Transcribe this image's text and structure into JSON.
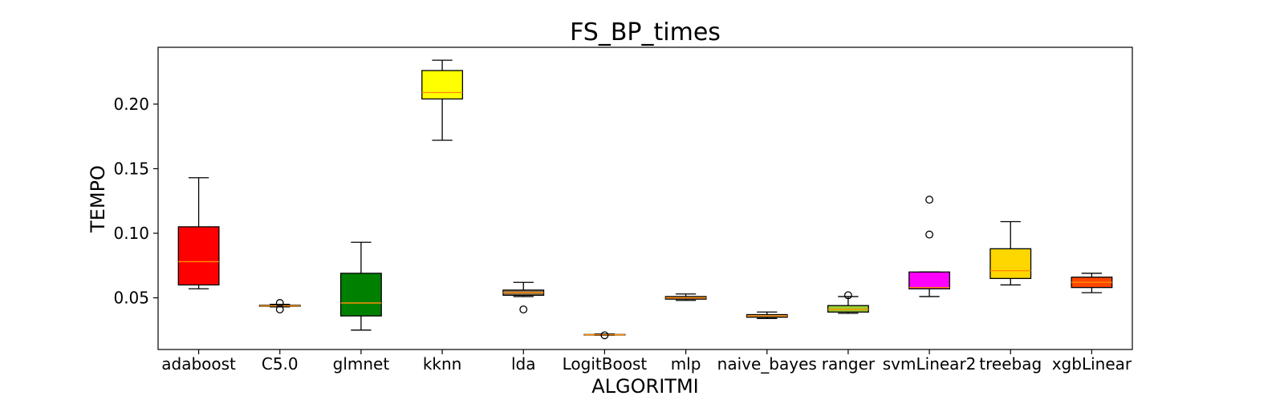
{
  "chart_data": {
    "type": "box",
    "title": "FS_BP_times",
    "xlabel": "ALGORITMI",
    "ylabel": "TEMPO",
    "ylim": [
      0.01,
      0.244
    ],
    "yticks": [
      0.05,
      0.1,
      0.15,
      0.2
    ],
    "ytick_labels": [
      "0.05",
      "0.10",
      "0.15",
      "0.20"
    ],
    "grid": false,
    "median_color": "#ff8c00",
    "categories": [
      "adaboost",
      "C5.0",
      "glmnet",
      "kknn",
      "lda",
      "LogitBoost",
      "mlp",
      "naive_bayes",
      "ranger",
      "svmLinear2",
      "treebag",
      "xgbLinear"
    ],
    "boxes": [
      {
        "name": "adaboost",
        "color": "#ff0000",
        "whislo": 0.057,
        "q1": 0.06,
        "median": 0.078,
        "q3": 0.105,
        "whishi": 0.143,
        "fliers": []
      },
      {
        "name": "C5.0",
        "color": "#808080",
        "whislo": 0.043,
        "q1": 0.0435,
        "median": 0.0438,
        "q3": 0.0442,
        "whishi": 0.045,
        "fliers": [
          0.046,
          0.041
        ]
      },
      {
        "name": "glmnet",
        "color": "#008000",
        "whislo": 0.025,
        "q1": 0.036,
        "median": 0.046,
        "q3": 0.069,
        "whishi": 0.093,
        "fliers": []
      },
      {
        "name": "kknn",
        "color": "#ffff00",
        "whislo": 0.172,
        "q1": 0.204,
        "median": 0.209,
        "q3": 0.226,
        "whishi": 0.234,
        "fliers": []
      },
      {
        "name": "lda",
        "color": "#8b7355",
        "whislo": 0.051,
        "q1": 0.052,
        "median": 0.054,
        "q3": 0.056,
        "whishi": 0.062,
        "fliers": [
          0.041
        ]
      },
      {
        "name": "LogitBoost",
        "color": "#8a2be2",
        "whislo": 0.021,
        "q1": 0.0212,
        "median": 0.0214,
        "q3": 0.0216,
        "whishi": 0.022,
        "fliers": [
          0.021
        ]
      },
      {
        "name": "mlp",
        "color": "#f4a460",
        "whislo": 0.048,
        "q1": 0.049,
        "median": 0.05,
        "q3": 0.051,
        "whishi": 0.053,
        "fliers": []
      },
      {
        "name": "naive_bayes",
        "color": "#deb887",
        "whislo": 0.034,
        "q1": 0.035,
        "median": 0.036,
        "q3": 0.037,
        "whishi": 0.039,
        "fliers": []
      },
      {
        "name": "ranger",
        "color": "#9acd32",
        "whislo": 0.038,
        "q1": 0.039,
        "median": 0.041,
        "q3": 0.044,
        "whishi": 0.051,
        "fliers": [
          0.052
        ]
      },
      {
        "name": "svmLinear2",
        "color": "#ff00ff",
        "whislo": 0.051,
        "q1": 0.057,
        "median": 0.058,
        "q3": 0.07,
        "whishi": 0.07,
        "fliers": [
          0.126,
          0.099
        ]
      },
      {
        "name": "treebag",
        "color": "#ffd700",
        "whislo": 0.06,
        "q1": 0.065,
        "median": 0.071,
        "q3": 0.088,
        "whishi": 0.109,
        "fliers": []
      },
      {
        "name": "xgbLinear",
        "color": "#ff4500",
        "whislo": 0.054,
        "q1": 0.058,
        "median": 0.062,
        "q3": 0.066,
        "whishi": 0.069,
        "fliers": []
      }
    ]
  }
}
